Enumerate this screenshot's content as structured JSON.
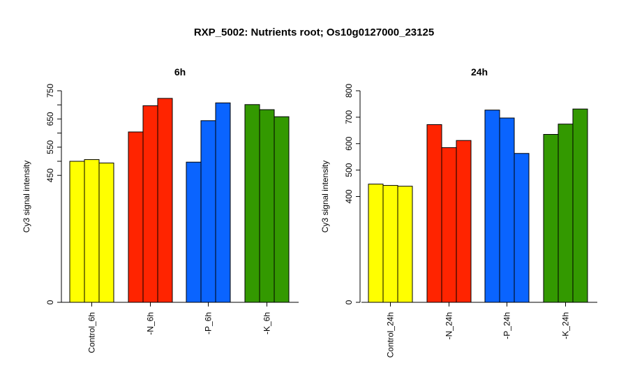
{
  "figure": {
    "title": "RXP_5002: Nutrients root; Os10g0127000_23125"
  },
  "chart_data": [
    {
      "type": "bar",
      "title": "6h",
      "ylabel": "Cy3 signal intensity",
      "xlabel": "",
      "ylim": [
        0,
        750
      ],
      "yticks": [
        0,
        450,
        550,
        650,
        750
      ],
      "grid": false,
      "categories": [
        "Control_6h",
        "-N_6h",
        "-P_6h",
        "-K_6h"
      ],
      "groups": [
        {
          "label": "Control_6h",
          "color": "#ffff00",
          "values": [
            500,
            506,
            494
          ]
        },
        {
          "label": "-N_6h",
          "color": "#ff2400",
          "values": [
            604,
            697,
            723
          ]
        },
        {
          "label": "-P_6h",
          "color": "#0a64ff",
          "values": [
            497,
            644,
            707
          ]
        },
        {
          "label": "-K_6h",
          "color": "#339900",
          "values": [
            701,
            683,
            658
          ]
        }
      ]
    },
    {
      "type": "bar",
      "title": "24h",
      "ylabel": "Cy3 signal intensity",
      "xlabel": "",
      "ylim": [
        0,
        800
      ],
      "yticks": [
        0,
        400,
        500,
        600,
        700,
        800
      ],
      "grid": false,
      "categories": [
        "Control_24h",
        "-N_24h",
        "-P_24h",
        "-K_24h"
      ],
      "groups": [
        {
          "label": "Control_24h",
          "color": "#ffff00",
          "values": [
            447,
            442,
            439
          ]
        },
        {
          "label": "-N_24h",
          "color": "#ff2400",
          "values": [
            672,
            585,
            612
          ]
        },
        {
          "label": "-P_24h",
          "color": "#0a64ff",
          "values": [
            727,
            697,
            563
          ]
        },
        {
          "label": "-K_24h",
          "color": "#339900",
          "values": [
            635,
            674,
            731
          ]
        }
      ]
    }
  ]
}
